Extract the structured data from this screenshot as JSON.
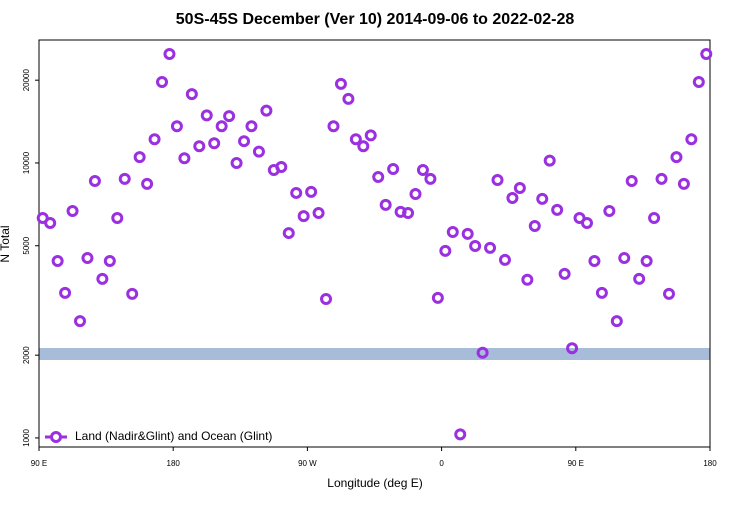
{
  "chart_data": {
    "type": "scatter",
    "title": "50S-45S December (Ver 10)   2014-09-06 to 2022-02-28",
    "x_label": "Longitude (deg E)",
    "y_label": "N Total",
    "log_y": true,
    "xlim": [
      90,
      540
    ],
    "xticks": [
      {
        "value": 90,
        "label": "90 E"
      },
      180,
      {
        "value": 270,
        "label": "90 W"
      },
      {
        "value": 360,
        "label": "0"
      },
      {
        "value": 450,
        "label": "90 E"
      },
      {
        "value": 540,
        "label": "180"
      }
    ],
    "ylim": [
      927,
      28000
    ],
    "yticks": [
      1000,
      2000,
      5000,
      10000,
      20000
    ],
    "legend_position": "bottom-left",
    "series": [
      {
        "name": "Land (Nadir&Glint) and Ocean (Glint)",
        "color": "#9b30e0",
        "x": [
          92.5,
          97.5,
          102.5,
          107.5,
          112.5,
          117.5,
          122.5,
          127.5,
          132.5,
          137.5,
          142.5,
          147.5,
          152.5,
          157.5,
          162.5,
          167.5,
          172.5,
          177.5,
          182.5,
          187.5,
          192.5,
          197.5,
          202.5,
          207.5,
          212.5,
          217.5,
          222.5,
          227.5,
          232.5,
          237.5,
          242.5,
          247.5,
          252.5,
          257.5,
          262.5,
          267.5,
          272.5,
          277.5,
          282.5,
          287.5,
          292.5,
          297.5,
          302.5,
          307.5,
          312.5,
          317.5,
          322.5,
          327.5,
          332.5,
          337.5,
          342.5,
          347.5,
          352.5,
          357.5,
          362.5,
          367.5,
          372.5,
          377.5,
          382.5,
          387.5,
          392.5,
          397.5,
          402.5,
          407.5,
          412.5,
          417.5,
          422.5,
          427.5,
          432.5,
          437.5,
          442.5,
          447.5,
          452.5,
          457.5,
          462.5,
          467.5,
          472.5,
          477.5,
          482.5,
          487.5,
          492.5,
          497.5,
          502.5,
          507.5,
          512.5,
          517.5,
          522.5,
          527.5,
          532.5,
          537.5
        ],
        "values": [
          6310,
          6050,
          4400,
          3370,
          6690,
          2660,
          4510,
          8600,
          3790,
          4400,
          6310,
          8750,
          3340,
          10500,
          8390,
          12200,
          19700,
          24900,
          13600,
          10400,
          17800,
          11500,
          14900,
          11800,
          13600,
          14800,
          10000,
          12000,
          13600,
          11000,
          15500,
          9430,
          9670,
          5560,
          7780,
          6410,
          7850,
          6580,
          3200,
          13600,
          19400,
          17100,
          12200,
          11500,
          12600,
          8890,
          7040,
          9510,
          6640,
          6580,
          7710,
          9430,
          8750,
          3230,
          4790,
          5610,
          1030,
          5520,
          4990,
          2040,
          4910,
          8670,
          4440,
          7460,
          8110,
          3760,
          5900,
          7400,
          10200,
          6750,
          3950,
          2120,
          6310,
          6050,
          4400,
          3370,
          6690,
          2660,
          4510,
          8600,
          3790,
          4400,
          6310,
          8750,
          3340,
          10500,
          8390,
          12200,
          19700,
          24900
        ]
      }
    ]
  }
}
